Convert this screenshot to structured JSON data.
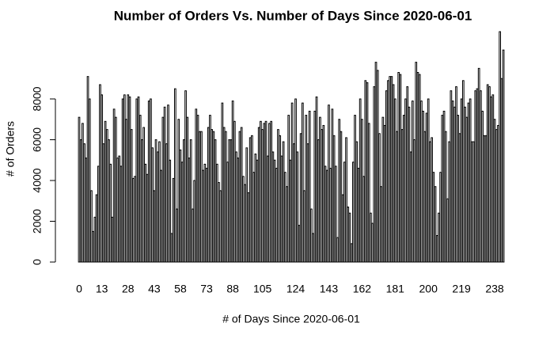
{
  "chart_data": {
    "type": "bar",
    "title": "Number of Orders Vs. Number of Days Since 2020-06-01",
    "x_label": "# of Days Since 2020-06-01",
    "y_label": "# of Orders",
    "color": "#ffffff",
    "categories": [
      "0",
      null,
      null,
      null,
      null,
      null,
      null,
      null,
      null,
      null,
      null,
      null,
      null,
      "13",
      null,
      null,
      null,
      null,
      null,
      null,
      null,
      null,
      null,
      null,
      null,
      null,
      null,
      null,
      "28",
      null,
      null,
      null,
      null,
      null,
      null,
      null,
      null,
      null,
      null,
      null,
      null,
      null,
      null,
      "43",
      null,
      null,
      null,
      null,
      null,
      null,
      null,
      null,
      null,
      null,
      null,
      null,
      null,
      null,
      "58",
      null,
      null,
      null,
      null,
      null,
      null,
      null,
      null,
      null,
      null,
      null,
      null,
      null,
      null,
      "73",
      null,
      null,
      null,
      null,
      null,
      null,
      null,
      null,
      null,
      null,
      null,
      null,
      null,
      null,
      "88",
      null,
      null,
      null,
      null,
      null,
      null,
      null,
      null,
      null,
      null,
      null,
      null,
      null,
      null,
      null,
      null,
      "105",
      null,
      null,
      null,
      null,
      null,
      null,
      null,
      null,
      null,
      null,
      null,
      null,
      null,
      null,
      null,
      null,
      null,
      null,
      "124",
      null,
      null,
      null,
      null,
      null,
      null,
      null,
      null,
      null,
      null,
      null,
      null,
      null,
      null,
      null,
      null,
      null,
      null,
      "143",
      null,
      null,
      null,
      null,
      null,
      null,
      null,
      null,
      null,
      null,
      null,
      null,
      null,
      null,
      null,
      null,
      null,
      null,
      "162",
      null,
      null,
      null,
      null,
      null,
      null,
      null,
      null,
      null,
      null,
      null,
      null,
      null,
      null,
      null,
      null,
      null,
      null,
      "181",
      null,
      null,
      null,
      null,
      null,
      null,
      null,
      null,
      null,
      null,
      null,
      null,
      null,
      null,
      null,
      null,
      null,
      null,
      "200",
      null,
      null,
      null,
      null,
      null,
      null,
      null,
      null,
      null,
      null,
      null,
      null,
      null,
      null,
      null,
      null,
      null,
      null,
      "219",
      null,
      null,
      null,
      null,
      null,
      null,
      null,
      null,
      null,
      null,
      null,
      null,
      null,
      null,
      null,
      null,
      null,
      null,
      "238",
      null,
      null,
      null,
      null,
      null
    ],
    "values": [
      7100,
      6000,
      6800,
      5800,
      5100,
      9100,
      8000,
      3500,
      1500,
      2200,
      3300,
      4700,
      8700,
      8200,
      5800,
      6900,
      6500,
      6000,
      4800,
      2200,
      7500,
      7100,
      5100,
      5200,
      4700,
      8000,
      8200,
      7000,
      8200,
      8100,
      6500,
      4100,
      4200,
      8000,
      8100,
      7200,
      6000,
      6600,
      4800,
      4300,
      7900,
      8000,
      5600,
      3500,
      6000,
      5400,
      5900,
      4500,
      7100,
      7600,
      5800,
      7700,
      5000,
      1400,
      4100,
      8500,
      2600,
      7000,
      5500,
      4900,
      6000,
      8400,
      7100,
      5100,
      6000,
      2600,
      4000,
      7500,
      7200,
      6400,
      6400,
      4500,
      4800,
      4600,
      6600,
      7200,
      6500,
      6400,
      6000,
      4800,
      3900,
      3500,
      7800,
      6600,
      6400,
      4900,
      6000,
      6000,
      7900,
      6900,
      5400,
      5100,
      6400,
      6600,
      4200,
      3800,
      5600,
      3400,
      6100,
      6200,
      4400,
      5300,
      5000,
      6600,
      6900,
      6500,
      6800,
      6900,
      5200,
      6800,
      6900,
      5400,
      5000,
      4600,
      6500,
      6200,
      5200,
      5900,
      4400,
      3700,
      7200,
      5000,
      7800,
      5800,
      8000,
      5400,
      1800,
      6300,
      7800,
      3500,
      7200,
      5800,
      7400,
      2600,
      1400,
      7400,
      8100,
      6000,
      7100,
      6500,
      6700,
      4700,
      4500,
      7700,
      4600,
      7500,
      6200,
      4700,
      1200,
      7000,
      6400,
      3300,
      4900,
      6100,
      2700,
      2400,
      900,
      4900,
      7200,
      5900,
      4600,
      8000,
      7000,
      4200,
      8900,
      8800,
      6800,
      2400,
      1900,
      8600,
      9800,
      9400,
      6300,
      3700,
      7100,
      6700,
      8400,
      8900,
      9100,
      9100,
      8700,
      8000,
      6400,
      9300,
      9200,
      6500,
      7200,
      8000,
      8600,
      7600,
      5400,
      7900,
      6000,
      9800,
      9300,
      9200,
      7900,
      7400,
      6400,
      7300,
      8000,
      5900,
      6100,
      4400,
      3700,
      1300,
      2400,
      4400,
      7200,
      7400,
      6400,
      3100,
      5900,
      8400,
      7900,
      7600,
      8600,
      7200,
      6300,
      8000,
      8900,
      7600,
      7100,
      7800,
      8000,
      5900,
      5900,
      8400,
      8500,
      9500,
      8400,
      7400,
      6200,
      6200,
      8700,
      8600,
      8100,
      8200,
      7000,
      6500,
      6700,
      11300,
      9000,
      10400
    ],
    "ylim": [
      0,
      11300
    ],
    "yticks": [
      0,
      2000,
      4000,
      6000,
      8000
    ]
  }
}
